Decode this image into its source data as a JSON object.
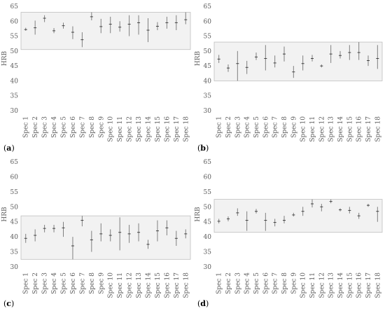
{
  "figure": {
    "y_axis_label": "HRB",
    "y_ticks": [
      30,
      35,
      40,
      45,
      50,
      55,
      60,
      65
    ],
    "categories": [
      "Spec 1",
      "Spec 2",
      "Spec 3",
      "Spec 4",
      "Spec 5",
      "Spec 6",
      "Spec 7",
      "Spec 8",
      "Spec 9",
      "Spec 10",
      "Spec 11",
      "Spec 12",
      "Spec 13",
      "Spec 14",
      "Spec 15",
      "Spec 16",
      "Spec 17",
      "Spec 18"
    ],
    "colors": {
      "whisker": "#7f7f7f",
      "box_border": "#bfbfbf",
      "box_fill": "#f2f2f2",
      "text": "#595959"
    }
  },
  "chart_data": [
    {
      "panel": "(a)",
      "type": "range",
      "ylabel": "HRB",
      "ylim": [
        30,
        65
      ],
      "band": [
        50.5,
        63
      ],
      "categories": [
        "Spec 1",
        "Spec 2",
        "Spec 3",
        "Spec 4",
        "Spec 5",
        "Spec 6",
        "Spec 7",
        "Spec 8",
        "Spec 9",
        "Spec 10",
        "Spec 11",
        "Spec 12",
        "Spec 13",
        "Spec 14",
        "Spec 15",
        "Spec 16",
        "Spec 17",
        "Spec 18"
      ],
      "mean": [
        57.2,
        57.8,
        61.0,
        56.8,
        58.5,
        56.3,
        53.8,
        61.5,
        58.2,
        59.0,
        58.0,
        59.0,
        59.5,
        57.0,
        58.3,
        59.5,
        59.5,
        60.5
      ],
      "min": [
        56.8,
        55.5,
        59.7,
        56.0,
        57.5,
        54.0,
        51.3,
        60.3,
        56.0,
        56.0,
        56.5,
        55.0,
        55.5,
        53.0,
        57.0,
        57.5,
        57.0,
        59.0
      ],
      "max": [
        57.8,
        60.2,
        62.0,
        57.7,
        59.5,
        58.3,
        56.3,
        63.0,
        60.8,
        61.5,
        60.0,
        62.0,
        62.0,
        61.0,
        59.7,
        61.5,
        62.0,
        63.0
      ]
    },
    {
      "panel": "(b)",
      "type": "range",
      "ylabel": "HRB",
      "ylim": [
        30,
        65
      ],
      "band": [
        40,
        53
      ],
      "categories": [
        "Spec 1",
        "Spec 2",
        "Spec 3",
        "Spec 4",
        "Spec 5",
        "Spec 6",
        "Spec 7",
        "Spec 8",
        "Spec 9",
        "Spec 10",
        "Spec 11",
        "Spec 12",
        "Spec 13",
        "Spec 14",
        "Spec 15",
        "Spec 16",
        "Spec 17",
        "Spec 18"
      ],
      "mean": [
        47.3,
        44.3,
        45.8,
        44.5,
        48.0,
        47.5,
        46.0,
        49.0,
        43.0,
        45.8,
        47.5,
        45.0,
        49.0,
        48.5,
        49.5,
        49.5,
        46.8,
        47.5
      ],
      "min": [
        46.0,
        43.0,
        40.0,
        42.3,
        47.0,
        43.5,
        44.5,
        46.5,
        41.0,
        43.5,
        46.5,
        44.5,
        46.0,
        47.5,
        47.0,
        47.0,
        45.0,
        44.0
      ],
      "max": [
        48.7,
        45.5,
        50.0,
        46.7,
        49.5,
        52.0,
        48.5,
        51.5,
        45.0,
        48.5,
        48.7,
        45.5,
        52.0,
        50.0,
        52.0,
        53.0,
        48.5,
        52.0
      ]
    },
    {
      "panel": "(c)",
      "type": "range",
      "ylabel": "HRB",
      "ylim": [
        30,
        65
      ],
      "band": [
        32.5,
        47
      ],
      "categories": [
        "Spec 1",
        "Spec 2",
        "Spec 3",
        "Spec 4",
        "Spec 5",
        "Spec 6",
        "Spec 7",
        "Spec 8",
        "Spec 9",
        "Spec 10",
        "Spec 11",
        "Spec 12",
        "Spec 13",
        "Spec 14",
        "Spec 15",
        "Spec 16",
        "Spec 17",
        "Spec 18"
      ],
      "mean": [
        39.5,
        40.5,
        42.8,
        42.8,
        43.0,
        37.0,
        45.5,
        39.0,
        41.0,
        40.5,
        41.5,
        41.0,
        41.5,
        37.5,
        42.0,
        43.0,
        39.5,
        41.0
      ],
      "min": [
        38.0,
        38.5,
        41.5,
        41.5,
        40.0,
        32.5,
        43.5,
        35.0,
        38.5,
        38.5,
        35.5,
        38.0,
        38.5,
        36.0,
        38.5,
        40.5,
        37.0,
        39.5
      ],
      "max": [
        41.0,
        42.5,
        44.0,
        44.0,
        45.0,
        40.0,
        47.0,
        42.0,
        44.5,
        42.5,
        46.5,
        44.0,
        44.5,
        39.0,
        45.5,
        45.5,
        42.0,
        42.5
      ]
    },
    {
      "panel": "(d)",
      "type": "range",
      "ylabel": "HRB",
      "ylim": [
        30,
        65
      ],
      "band": [
        41.5,
        52.5
      ],
      "categories": [
        "Spec 1",
        "Spec 2",
        "Spec 3",
        "Spec 4",
        "Spec 5",
        "Spec 6",
        "Spec 7",
        "Spec 8",
        "Spec 9",
        "Spec 10",
        "Spec 11",
        "Spec 12",
        "Spec 13",
        "Spec 14",
        "Spec 15",
        "Spec 16",
        "Spec 17",
        "Spec 18"
      ],
      "mean": [
        45.2,
        46.0,
        48.0,
        45.5,
        48.5,
        45.5,
        44.8,
        45.5,
        47.3,
        48.5,
        51.0,
        50.0,
        51.8,
        49.0,
        48.8,
        47.0,
        50.5,
        48.5
      ],
      "min": [
        44.5,
        45.2,
        47.0,
        42.0,
        47.8,
        42.0,
        43.5,
        44.5,
        46.8,
        47.0,
        49.8,
        48.5,
        51.2,
        48.5,
        47.8,
        46.0,
        50.0,
        45.0
      ],
      "max": [
        46.0,
        46.8,
        49.5,
        48.5,
        49.3,
        48.0,
        46.0,
        47.0,
        48.0,
        50.0,
        52.5,
        51.0,
        52.5,
        49.5,
        50.0,
        48.0,
        51.0,
        50.0
      ]
    }
  ]
}
